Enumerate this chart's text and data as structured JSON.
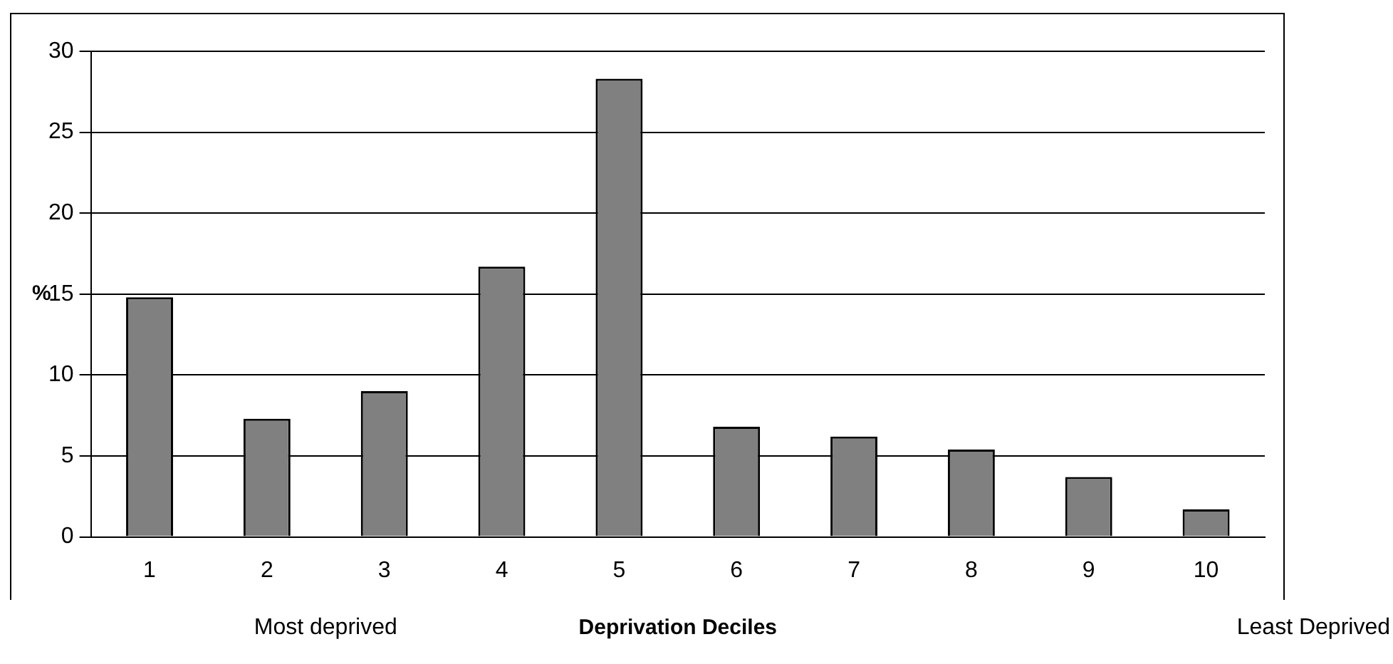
{
  "chart_data": {
    "type": "bar",
    "categories": [
      "1",
      "2",
      "3",
      "4",
      "5",
      "6",
      "7",
      "8",
      "9",
      "10"
    ],
    "values": [
      14.8,
      7.3,
      9.0,
      16.7,
      28.3,
      6.8,
      6.2,
      5.4,
      3.7,
      1.7
    ],
    "color": "#808080",
    "xlabel": "Deprivation Deciles",
    "ylabel": "%",
    "annotations": [
      "Most deprived",
      "Least Deprived"
    ],
    "ylim": [
      0,
      30
    ],
    "yticks": [
      0,
      5,
      10,
      15,
      20,
      25,
      30
    ],
    "grid": "y",
    "legend": false
  }
}
